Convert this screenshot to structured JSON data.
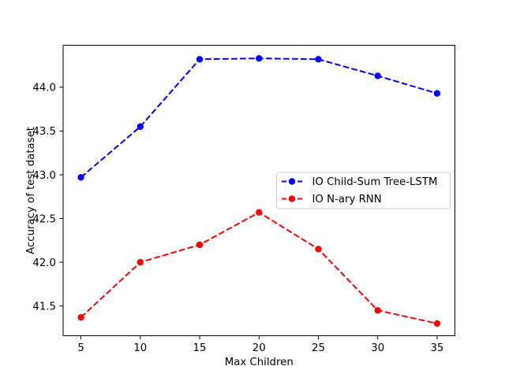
{
  "figure": {
    "background": "#ffffff"
  },
  "chart_data": {
    "type": "line",
    "title": "",
    "xlabel": "Max Children",
    "ylabel": "Accuracy of test dataset",
    "x": [
      5,
      10,
      15,
      20,
      25,
      30,
      35
    ],
    "series": [
      {
        "name": "IO Child-Sum Tree-LSTM",
        "color": "#0000ff",
        "linestyle": "--",
        "marker": "o",
        "values": [
          42.97,
          43.55,
          44.32,
          44.33,
          44.32,
          44.13,
          43.93
        ]
      },
      {
        "name": "IO N-ary RNN",
        "color": "#ff0000",
        "linestyle": "--",
        "marker": "o",
        "values": [
          41.37,
          42.0,
          42.2,
          42.57,
          42.15,
          41.45,
          41.3
        ]
      }
    ],
    "xlim": [
      3.5,
      36.5
    ],
    "ylim": [
      41.16,
      44.48
    ],
    "xticks": [
      5,
      10,
      15,
      20,
      25,
      30,
      35
    ],
    "xticklabels": [
      "5",
      "10",
      "15",
      "20",
      "25",
      "30",
      "35"
    ],
    "yticks": [
      41.5,
      42.0,
      42.5,
      43.0,
      43.5,
      44.0
    ],
    "yticklabels": [
      "41.5",
      "42.0",
      "42.5",
      "43.0",
      "43.5",
      "44.0"
    ],
    "grid": false,
    "legend": {
      "position": "center right",
      "border_color": "#cccccc",
      "background": "#ffffff"
    },
    "axis_color": "#000000",
    "tick_label_color": "#000000"
  }
}
